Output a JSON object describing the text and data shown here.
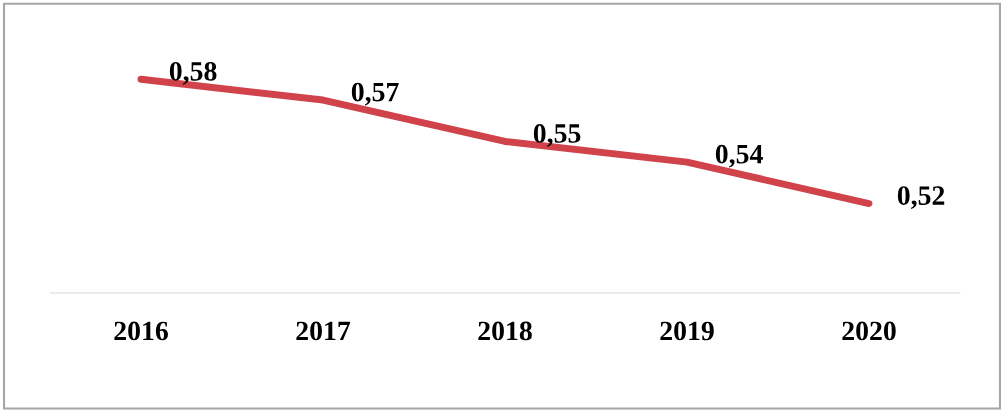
{
  "chart_data": {
    "type": "line",
    "categories": [
      "2016",
      "2017",
      "2018",
      "2019",
      "2020"
    ],
    "series": [
      {
        "color": "#d1434a",
        "values": [
          0.58,
          0.57,
          0.55,
          0.54,
          0.52
        ],
        "value_labels": [
          "0,58",
          "0,57",
          "0,55",
          "0,54",
          "0,52"
        ]
      }
    ],
    "marker": "none",
    "line_style": "solid"
  }
}
